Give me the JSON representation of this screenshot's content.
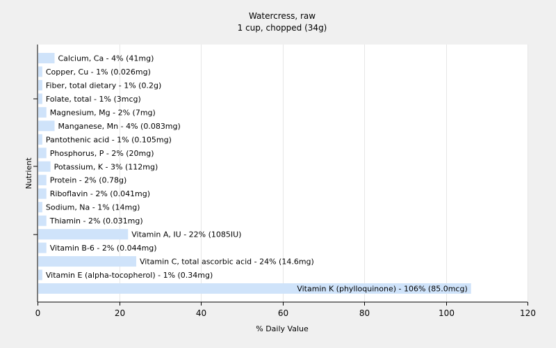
{
  "chart_data": {
    "type": "bar",
    "orientation": "horizontal",
    "title": "Watercress, raw",
    "subtitle": "1 cup, chopped (34g)",
    "xlabel": "% Daily Value",
    "ylabel": "Nutrient",
    "xlim": [
      0,
      120
    ],
    "xticks": [
      0,
      20,
      40,
      60,
      80,
      100,
      120
    ],
    "grid": "vertical",
    "bar_color": "#cfe3fa",
    "background_color": "#f0f0f0",
    "plot_background": "#ffffff",
    "categories": [
      "Calcium, Ca",
      "Copper, Cu",
      "Fiber, total dietary",
      "Folate, total",
      "Magnesium, Mg",
      "Manganese, Mn",
      "Pantothenic acid",
      "Phosphorus, P",
      "Potassium, K",
      "Protein",
      "Riboflavin",
      "Sodium, Na",
      "Thiamin",
      "Vitamin A, IU",
      "Vitamin B-6",
      "Vitamin C, total ascorbic acid",
      "Vitamin E (alpha-tocopherol)",
      "Vitamin K (phylloquinone)"
    ],
    "values": [
      4,
      1,
      1,
      1,
      2,
      4,
      1,
      2,
      3,
      2,
      2,
      1,
      2,
      22,
      2,
      24,
      1,
      106
    ],
    "labels": [
      "Calcium, Ca - 4% (41mg)",
      "Copper, Cu - 1% (0.026mg)",
      "Fiber, total dietary - 1% (0.2g)",
      "Folate, total - 1% (3mcg)",
      "Magnesium, Mg - 2% (7mg)",
      "Manganese, Mn - 4% (0.083mg)",
      "Pantothenic acid - 1% (0.105mg)",
      "Phosphorus, P - 2% (20mg)",
      "Potassium, K - 3% (112mg)",
      "Protein - 2% (0.78g)",
      "Riboflavin - 2% (0.041mg)",
      "Sodium, Na - 1% (14mg)",
      "Thiamin - 2% (0.031mg)",
      "Vitamin A, IU - 22% (1085IU)",
      "Vitamin B-6 - 2% (0.044mg)",
      "Vitamin C, total ascorbic acid - 24% (14.6mg)",
      "Vitamin E (alpha-tocopherol) - 1% (0.34mg)",
      "Vitamin K (phylloquinone) - 106% (85.0mcg)"
    ]
  }
}
